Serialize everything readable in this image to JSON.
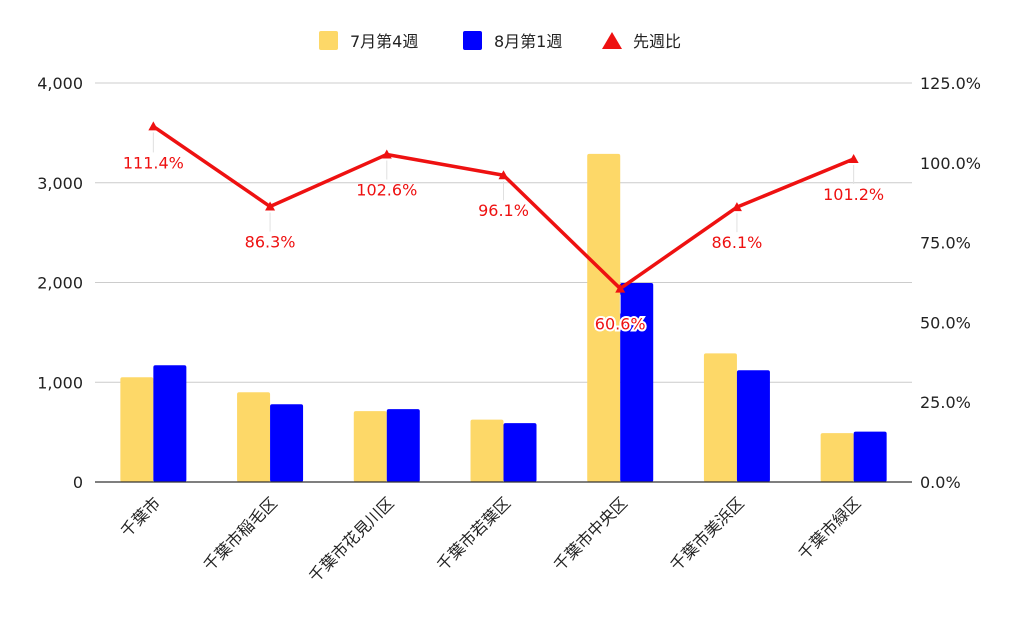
{
  "chart_data": {
    "type": "bar",
    "categories": [
      "千葉市",
      "千葉市稲毛区",
      "千葉市花見川区",
      "千葉市若葉区",
      "千葉市中央区",
      "千葉市美浜区",
      "千葉市緑区"
    ],
    "series": [
      {
        "name": "7月第4週",
        "type": "bar",
        "axis": "left",
        "color": "#fdd868",
        "values": [
          1050,
          900,
          710,
          625,
          3290,
          1290,
          490
        ]
      },
      {
        "name": "8月第1週",
        "type": "bar",
        "axis": "left",
        "color": "#0000ff",
        "values": [
          1170,
          780,
          730,
          590,
          1995,
          1120,
          505
        ]
      },
      {
        "name": "先週比",
        "type": "line",
        "axis": "right",
        "color": "#ee1111",
        "marker": "triangle",
        "values": [
          111.4,
          86.3,
          102.6,
          96.1,
          60.6,
          86.1,
          101.2
        ]
      }
    ],
    "data_labels": [
      "111.4%",
      "86.3%",
      "102.6%",
      "96.1%",
      "60.6%",
      "86.1%",
      "101.2%"
    ],
    "left_axis": {
      "min": 0,
      "max": 4000,
      "ticks": [
        0,
        1000,
        2000,
        3000,
        4000
      ],
      "tick_labels": [
        "0",
        "1,000",
        "2,000",
        "3,000",
        "4,000"
      ]
    },
    "right_axis": {
      "min": 0,
      "max": 125,
      "ticks": [
        0,
        25,
        50,
        75,
        100,
        125
      ],
      "tick_labels": [
        "0.0%",
        "25.0%",
        "50.0%",
        "75.0%",
        "100.0%",
        "125.0%"
      ]
    },
    "legend_position": "top-center",
    "grid": true,
    "title": "",
    "xlabel": "",
    "ylabel": ""
  }
}
